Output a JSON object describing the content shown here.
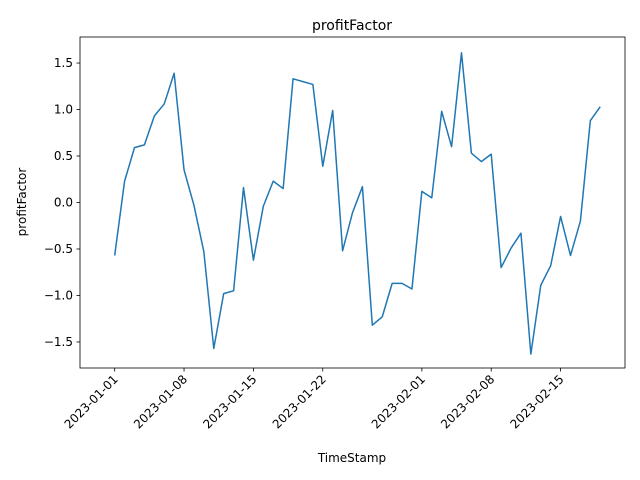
{
  "chart_data": {
    "type": "line",
    "title": "profitFactor",
    "xlabel": "TimeStamp",
    "ylabel": "profitFactor",
    "series": [
      {
        "color": "#1f77b4",
        "x": [
          "2023-01-01",
          "2023-01-02",
          "2023-01-03",
          "2023-01-04",
          "2023-01-05",
          "2023-01-06",
          "2023-01-07",
          "2023-01-08",
          "2023-01-09",
          "2023-01-10",
          "2023-01-11",
          "2023-01-12",
          "2023-01-13",
          "2023-01-14",
          "2023-01-15",
          "2023-01-16",
          "2023-01-17",
          "2023-01-18",
          "2023-01-19",
          "2023-01-20",
          "2023-01-21",
          "2023-01-22",
          "2023-01-23",
          "2023-01-24",
          "2023-01-25",
          "2023-01-26",
          "2023-01-27",
          "2023-01-28",
          "2023-01-29",
          "2023-01-30",
          "2023-01-31",
          "2023-02-01",
          "2023-02-02",
          "2023-02-03",
          "2023-02-04",
          "2023-02-05",
          "2023-02-06",
          "2023-02-07",
          "2023-02-08",
          "2023-02-09",
          "2023-02-10",
          "2023-02-11",
          "2023-02-12",
          "2023-02-13",
          "2023-02-14",
          "2023-02-15",
          "2023-02-16",
          "2023-02-17",
          "2023-02-18",
          "2023-02-19"
        ],
        "values": [
          -0.57,
          0.23,
          0.59,
          0.62,
          0.93,
          1.06,
          1.39,
          0.35,
          -0.03,
          -0.53,
          -1.57,
          -0.98,
          -0.95,
          0.16,
          -0.62,
          -0.04,
          0.23,
          0.15,
          1.33,
          1.3,
          1.27,
          0.39,
          0.99,
          -0.52,
          -0.11,
          0.17,
          -1.32,
          -1.23,
          -0.87,
          -0.87,
          -0.93,
          0.12,
          0.05,
          0.98,
          0.6,
          1.61,
          0.53,
          0.44,
          0.52,
          -0.7,
          -0.49,
          -0.33,
          -1.63,
          -0.89,
          -0.68,
          -0.15,
          -0.57,
          -0.2,
          0.88,
          1.03
        ]
      }
    ],
    "xticks": [
      "2023-01-01",
      "2023-01-08",
      "2023-01-15",
      "2023-01-22",
      "2023-02-01",
      "2023-02-08",
      "2023-02-15"
    ],
    "yticks": [
      "−1.5",
      "−1.0",
      "−0.5",
      "0.0",
      "0.5",
      "1.0",
      "1.5"
    ],
    "yticks_values": [
      -1.5,
      -1.0,
      -0.5,
      0.0,
      0.5,
      1.0,
      1.5
    ],
    "ylim": [
      -1.78,
      1.78
    ],
    "xlim": [
      "2022-12-28T12:00",
      "2023-02-21T12:00"
    ],
    "grid": false,
    "legend": "none"
  }
}
